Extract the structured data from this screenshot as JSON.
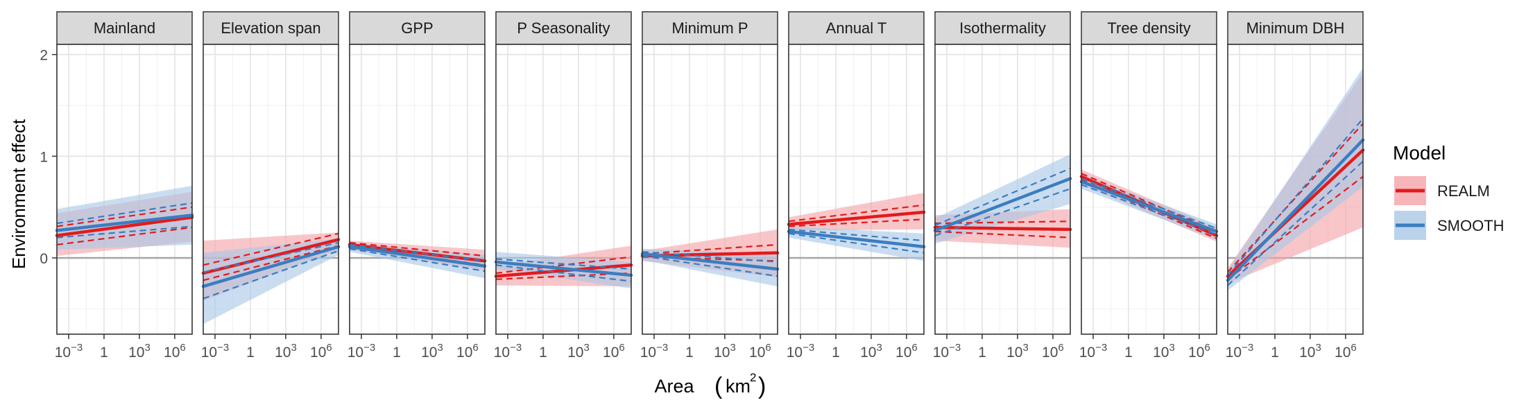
{
  "chart_data": {
    "type": "line",
    "xlabel": "Area",
    "xlabel_unit_base": "km",
    "xlabel_unit_exp": "2",
    "ylabel": "Environment effect",
    "x_scale": "log10",
    "x_range_km2": [
      0.0001,
      30000000
    ],
    "y_range": [
      -0.75,
      2.1
    ],
    "x_ticks": [
      {
        "value": 0.001,
        "base": "10",
        "exp": "−3"
      },
      {
        "value": 1,
        "base": "1",
        "exp": ""
      },
      {
        "value": 1000,
        "base": "10",
        "exp": "3"
      },
      {
        "value": 1000000,
        "base": "10",
        "exp": "6"
      }
    ],
    "y_ticks": [
      {
        "value": 0,
        "label": "0"
      },
      {
        "value": 1,
        "label": "1"
      },
      {
        "value": 2,
        "label": "2"
      }
    ],
    "reference_line_y": 0,
    "grid": true,
    "legend": {
      "title": "Model",
      "position": "right",
      "entries": [
        {
          "name": "REALM",
          "line_color": "#e31a1c",
          "band_color": "#f4a3a8"
        },
        {
          "name": "SMOOTH",
          "line_color": "#3b7dc0",
          "band_color": "#a9c8e6"
        }
      ]
    },
    "facets": [
      {
        "title": "Mainland",
        "REALM": {
          "x": [
            0.0001,
            30000000
          ],
          "y": [
            0.22,
            0.4
          ],
          "ci_lo": [
            0.02,
            0.16
          ],
          "ci_hi": [
            0.44,
            0.65
          ],
          "err_lo": [
            0.13,
            0.3
          ],
          "err_hi": [
            0.31,
            0.5
          ]
        },
        "SMOOTH": {
          "x": [
            0.0001,
            30000000
          ],
          "y": [
            0.27,
            0.42
          ],
          "ci_lo": [
            0.08,
            0.13
          ],
          "ci_hi": [
            0.48,
            0.71
          ],
          "err_lo": [
            0.2,
            0.31
          ],
          "err_hi": [
            0.34,
            0.54
          ]
        }
      },
      {
        "title": "Elevation span",
        "REALM": {
          "x": [
            0.0001,
            30000000
          ],
          "y": [
            -0.15,
            0.18
          ],
          "ci_lo": [
            -0.42,
            0.08
          ],
          "ci_hi": [
            0.17,
            0.25
          ],
          "err_lo": [
            -0.22,
            0.12
          ],
          "err_hi": [
            -0.07,
            0.24
          ]
        },
        "SMOOTH": {
          "x": [
            0.0001,
            30000000
          ],
          "y": [
            -0.28,
            0.11
          ],
          "ci_lo": [
            -0.65,
            0.03
          ],
          "ci_hi": [
            0.05,
            0.19
          ],
          "err_lo": [
            -0.4,
            0.07
          ],
          "err_hi": [
            -0.14,
            0.15
          ]
        }
      },
      {
        "title": "GPP",
        "REALM": {
          "x": [
            0.0001,
            30000000
          ],
          "y": [
            0.13,
            -0.03
          ],
          "ci_lo": [
            0.08,
            -0.12
          ],
          "ci_hi": [
            0.17,
            0.08
          ],
          "err_lo": [
            0.11,
            -0.07
          ],
          "err_hi": [
            0.15,
            0.02
          ]
        },
        "SMOOTH": {
          "x": [
            0.0001,
            30000000
          ],
          "y": [
            0.11,
            -0.08
          ],
          "ci_lo": [
            0.06,
            -0.2
          ],
          "ci_hi": [
            0.15,
            0.03
          ],
          "err_lo": [
            0.09,
            -0.13
          ],
          "err_hi": [
            0.13,
            -0.03
          ]
        }
      },
      {
        "title": "P Seasonality",
        "REALM": {
          "x": [
            0.0001,
            30000000
          ],
          "y": [
            -0.18,
            -0.07
          ],
          "ci_lo": [
            -0.27,
            -0.28
          ],
          "ci_hi": [
            -0.08,
            0.12
          ],
          "err_lo": [
            -0.21,
            -0.15
          ],
          "err_hi": [
            -0.15,
            0.01
          ]
        },
        "SMOOTH": {
          "x": [
            0.0001,
            30000000
          ],
          "y": [
            -0.04,
            -0.17
          ],
          "ci_lo": [
            -0.11,
            -0.3
          ],
          "ci_hi": [
            0.06,
            -0.04
          ],
          "err_lo": [
            -0.07,
            -0.23
          ],
          "err_hi": [
            -0.01,
            -0.11
          ]
        }
      },
      {
        "title": "Minimum P",
        "REALM": {
          "x": [
            0.0001,
            30000000
          ],
          "y": [
            0.02,
            0.05
          ],
          "ci_lo": [
            -0.03,
            -0.19
          ],
          "ci_hi": [
            0.07,
            0.28
          ],
          "err_lo": [
            0.01,
            -0.03
          ],
          "err_hi": [
            0.04,
            0.13
          ]
        },
        "SMOOTH": {
          "x": [
            0.0001,
            30000000
          ],
          "y": [
            0.04,
            -0.11
          ],
          "ci_lo": [
            -0.02,
            -0.28
          ],
          "ci_hi": [
            0.09,
            0.04
          ],
          "err_lo": [
            0.02,
            -0.18
          ],
          "err_hi": [
            0.06,
            -0.04
          ]
        }
      },
      {
        "title": "Annual T",
        "REALM": {
          "x": [
            0.0001,
            30000000
          ],
          "y": [
            0.33,
            0.45
          ],
          "ci_lo": [
            0.27,
            0.28
          ],
          "ci_hi": [
            0.4,
            0.64
          ],
          "err_lo": [
            0.31,
            0.38
          ],
          "err_hi": [
            0.36,
            0.52
          ]
        },
        "SMOOTH": {
          "x": [
            0.0001,
            30000000
          ],
          "y": [
            0.26,
            0.11
          ],
          "ci_lo": [
            0.2,
            -0.03
          ],
          "ci_hi": [
            0.31,
            0.24
          ],
          "err_lo": [
            0.24,
            0.05
          ],
          "err_hi": [
            0.28,
            0.17
          ]
        }
      },
      {
        "title": "Isothermality",
        "REALM": {
          "x": [
            0.0001,
            30000000
          ],
          "y": [
            0.3,
            0.28
          ],
          "ci_lo": [
            0.17,
            0.1
          ],
          "ci_hi": [
            0.42,
            0.48
          ],
          "err_lo": [
            0.26,
            0.2
          ],
          "err_hi": [
            0.34,
            0.36
          ]
        },
        "SMOOTH": {
          "x": [
            0.0001,
            30000000
          ],
          "y": [
            0.27,
            0.78
          ],
          "ci_lo": [
            0.14,
            0.53
          ],
          "ci_hi": [
            0.39,
            1.02
          ],
          "err_lo": [
            0.22,
            0.68
          ],
          "err_hi": [
            0.32,
            0.88
          ]
        }
      },
      {
        "title": "Tree density",
        "REALM": {
          "x": [
            0.0001,
            30000000
          ],
          "y": [
            0.8,
            0.22
          ],
          "ci_lo": [
            0.72,
            0.16
          ],
          "ci_hi": [
            0.87,
            0.3
          ],
          "err_lo": [
            0.77,
            0.19
          ],
          "err_hi": [
            0.83,
            0.26
          ]
        },
        "SMOOTH": {
          "x": [
            0.0001,
            30000000
          ],
          "y": [
            0.75,
            0.26
          ],
          "ci_lo": [
            0.68,
            0.18
          ],
          "ci_hi": [
            0.82,
            0.33
          ],
          "err_lo": [
            0.72,
            0.23
          ],
          "err_hi": [
            0.78,
            0.29
          ]
        }
      },
      {
        "title": "Minimum DBH",
        "REALM": {
          "x": [
            0.0001,
            30000000
          ],
          "y": [
            -0.18,
            1.06
          ],
          "ci_lo": [
            -0.25,
            0.3
          ],
          "ci_hi": [
            -0.1,
            1.82
          ],
          "err_lo": [
            -0.21,
            0.8
          ],
          "err_hi": [
            -0.14,
            1.32
          ]
        },
        "SMOOTH": {
          "x": [
            0.0001,
            30000000
          ],
          "y": [
            -0.22,
            1.16
          ],
          "ci_lo": [
            -0.32,
            0.7
          ],
          "ci_hi": [
            -0.12,
            1.87
          ],
          "err_lo": [
            -0.27,
            0.95
          ],
          "err_hi": [
            -0.17,
            1.37
          ]
        }
      }
    ]
  }
}
